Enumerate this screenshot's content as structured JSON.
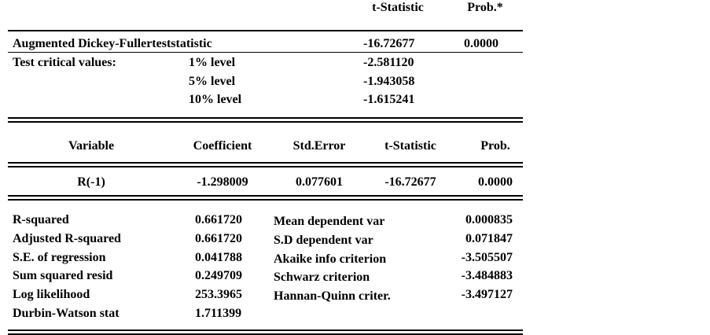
{
  "adf": {
    "header": [
      "t-Statistic",
      "Prob.*"
    ],
    "statistic": {
      "label": "Augmented Dickey-Fullerteststatistic",
      "t": "-16.72677",
      "prob": "0.0000"
    },
    "critical_label": "Test critical values:",
    "critical": [
      {
        "level": "1% level",
        "value": "-2.581120"
      },
      {
        "level": "5% level",
        "value": "-1.943058"
      },
      {
        "level": "10% level",
        "value": "-1.615241"
      }
    ]
  },
  "regression": {
    "header": [
      "Variable",
      "Coefficient",
      "Std.Error",
      "t-Statistic",
      "Prob."
    ],
    "row": [
      "R(-1)",
      "-1.298009",
      "0.077601",
      "-16.72677",
      "0.0000"
    ]
  },
  "stats": {
    "left": [
      [
        "R-squared",
        "0.661720"
      ],
      [
        "Adjusted R-squared",
        "0.661720"
      ],
      [
        "S.E. of regression",
        "0.041788"
      ],
      [
        "Sum squared resid",
        "0.249709"
      ],
      [
        "Log likelihood",
        "253.3965"
      ],
      [
        "Durbin-Watson stat",
        "1.711399"
      ]
    ],
    "right": [
      [
        "Mean dependent var",
        "0.000835"
      ],
      [
        "S.D dependent var",
        "0.071847"
      ],
      [
        "Akaike info criterion",
        "-3.505507"
      ],
      [
        "Schwarz criterion",
        "-3.484883"
      ],
      [
        "Hannan-Quinn criter.",
        "-3.497127"
      ]
    ]
  }
}
